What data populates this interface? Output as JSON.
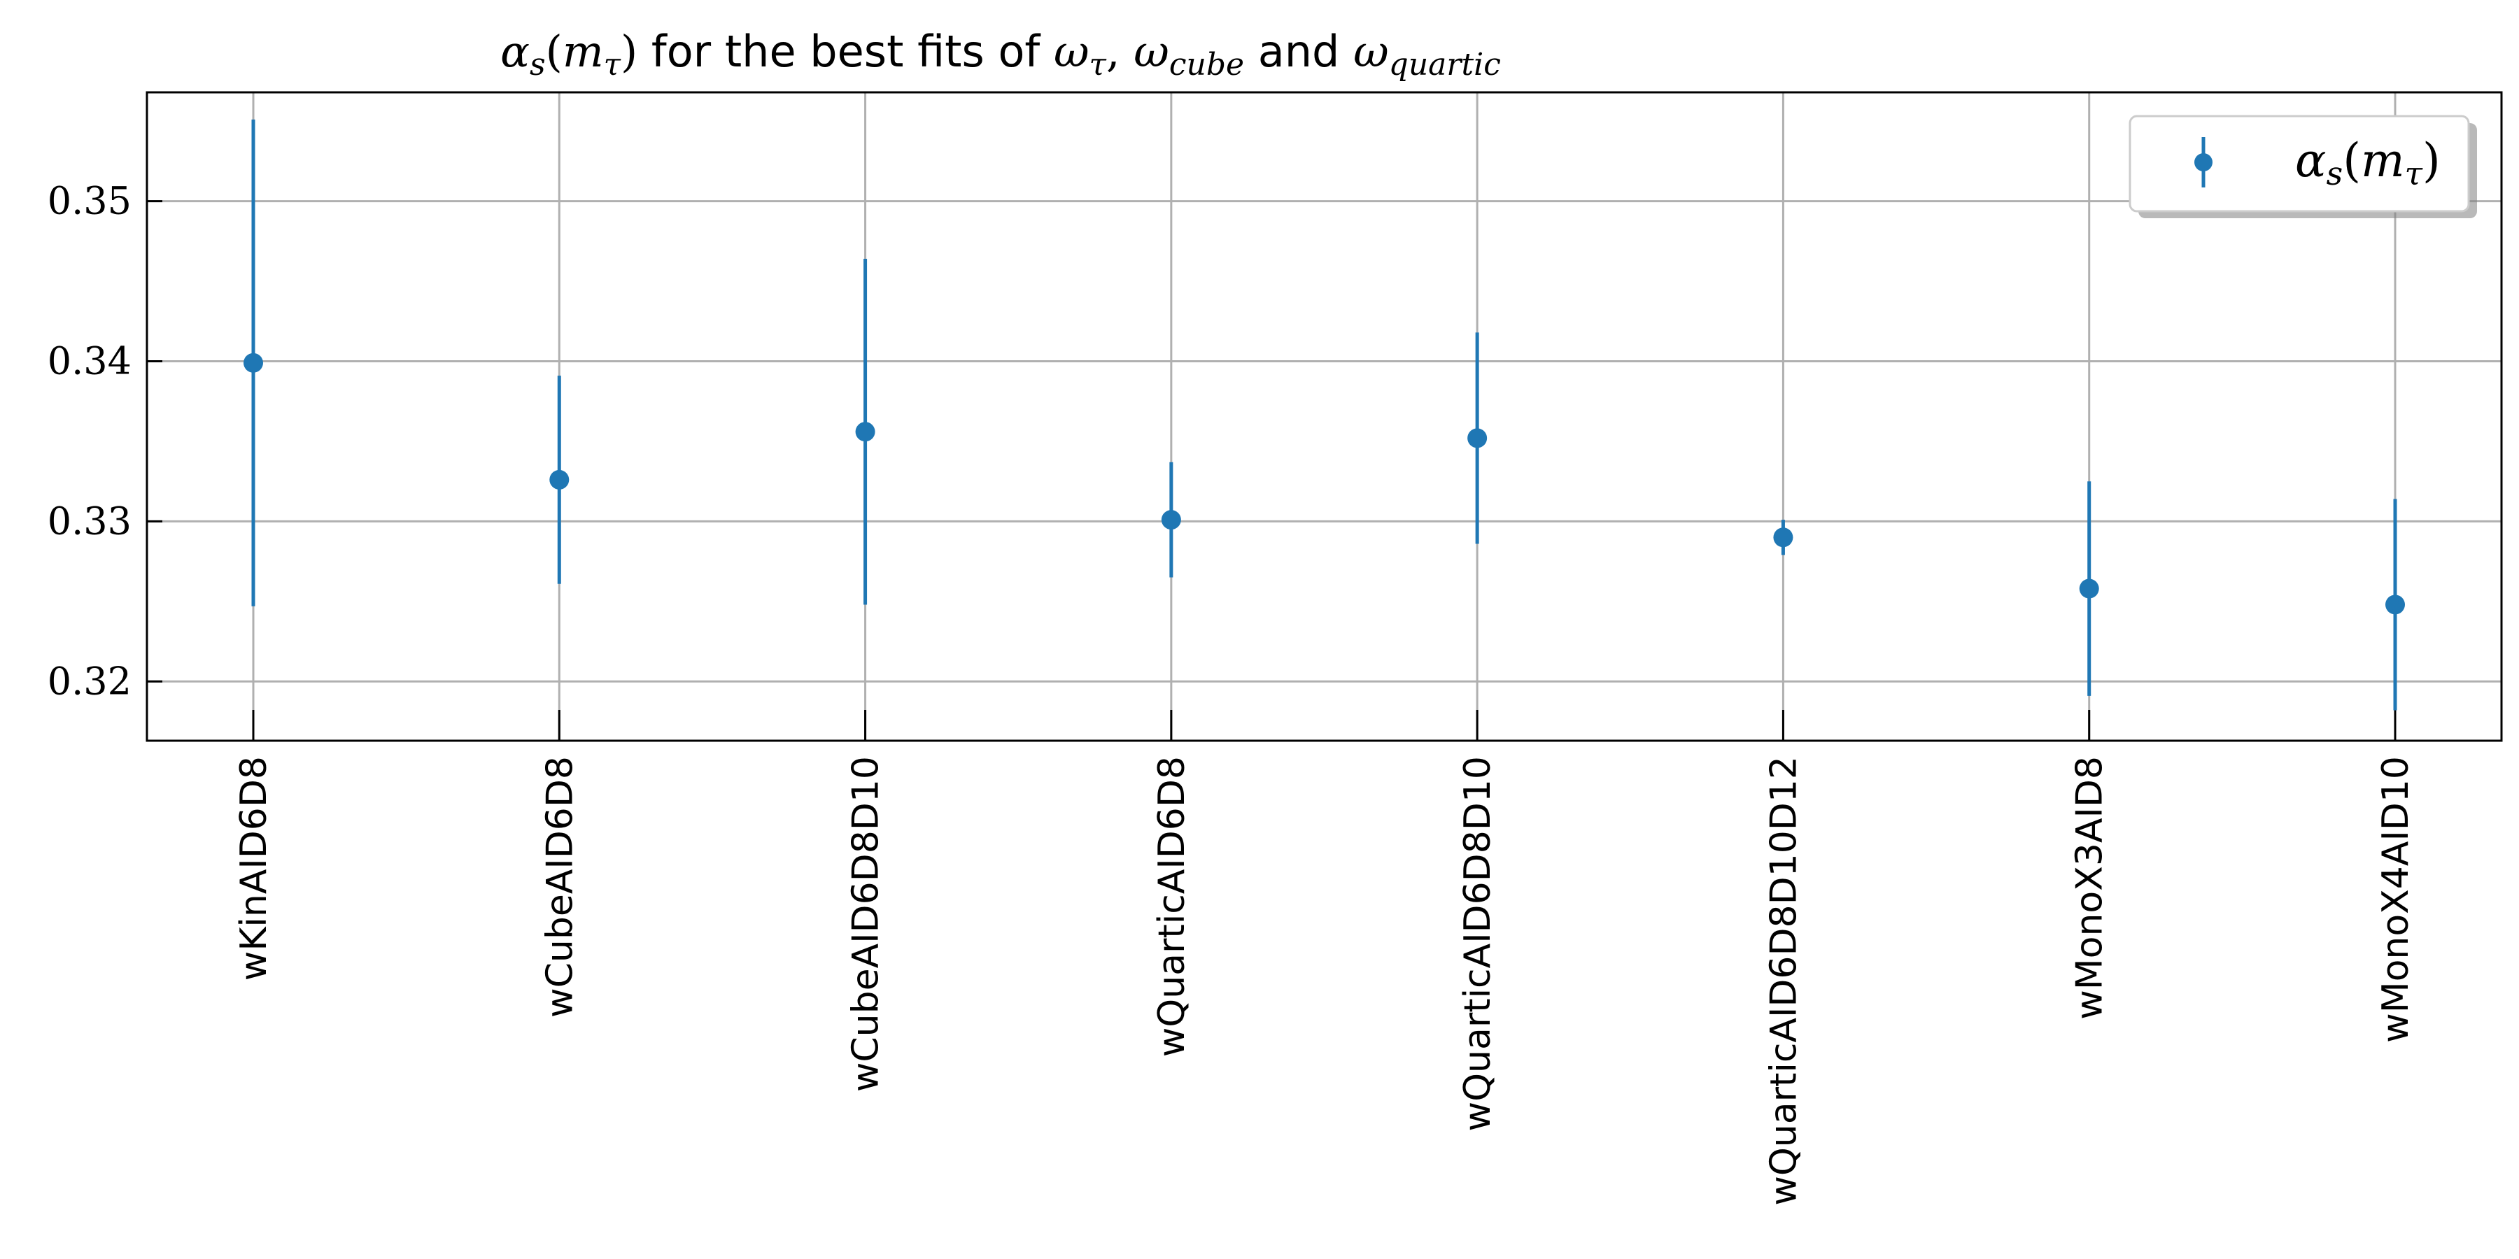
{
  "chart_data": {
    "type": "scatter",
    "title": "αs(mτ) for the best fits of ωτ, ωcube and ωquartic",
    "title_parts": {
      "alpha": "α",
      "s": "s",
      "lparen": "(",
      "m": "m",
      "tau": "τ",
      "rparen": ")",
      "text1": " for the best fits of ",
      "omega1": "ω",
      "sub1": "τ",
      "comma": ", ",
      "omega2": "ω",
      "sub2": "cube",
      "text2": " and ",
      "omega3": "ω",
      "sub3": "quartic"
    },
    "xlabel": "",
    "ylabel": "",
    "categories": [
      "wKinAID6D8",
      "wCubeAID6D8",
      "wCubeAID6D8D10",
      "wQuarticAID6D8",
      "wQuarticAID6D8D10",
      "wQuarticAID6D8D10D12",
      "wMonoX3AID8",
      "wMonoX4AID10"
    ],
    "series": [
      {
        "name": "αs(mτ)",
        "values": [
          0.3399,
          0.3326,
          0.3356,
          0.3301,
          0.3352,
          0.329,
          0.3258,
          0.3248
        ],
        "errors": [
          0.0152,
          0.0065,
          0.0108,
          0.0036,
          0.0066,
          0.0011,
          0.0067,
          0.0066
        ]
      }
    ],
    "ylim": [
      0.3163,
      0.3568
    ],
    "yticks": [
      0.32,
      0.33,
      0.34,
      0.35
    ],
    "ytick_labels": [
      "0.32",
      "0.33",
      "0.34",
      "0.35"
    ],
    "grid": true,
    "legend": {
      "position": "top-right",
      "label_parts": {
        "alpha": "α",
        "s": "s",
        "lparen": "(",
        "m": "m",
        "tau": "τ",
        "rparen": ")"
      }
    },
    "colors": {
      "series": "#1f77b4",
      "grid": "#b0b0b0",
      "axes": "#000000"
    }
  }
}
